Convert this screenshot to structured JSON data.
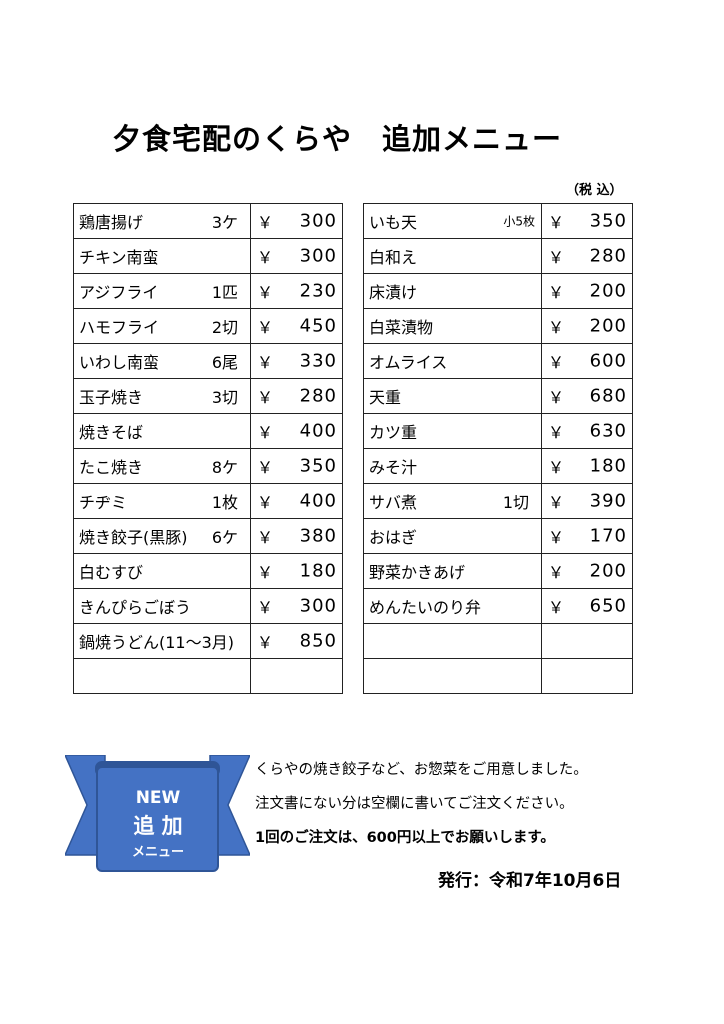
{
  "title": "夕食宅配のくらや　追加メニュー",
  "tax_note": "（税 込）",
  "currency_symbol": "￥",
  "left_menu": [
    {
      "name": "鶏唐揚げ",
      "qty": "3ケ",
      "price": "300"
    },
    {
      "name": "チキン南蛮",
      "qty": "",
      "price": "300"
    },
    {
      "name": "アジフライ",
      "qty": "1匹",
      "price": "230"
    },
    {
      "name": "ハモフライ",
      "qty": "2切",
      "price": "450"
    },
    {
      "name": "いわし南蛮",
      "qty": "6尾",
      "price": "330"
    },
    {
      "name": "玉子焼き",
      "qty": "3切",
      "price": "280"
    },
    {
      "name": "焼きそば",
      "qty": "",
      "price": "400"
    },
    {
      "name": "たこ焼き",
      "qty": "8ケ",
      "price": "350"
    },
    {
      "name": "チヂミ",
      "qty": "1枚",
      "price": "400"
    },
    {
      "name": "焼き餃子(黒豚)",
      "qty": "6ケ",
      "price": "380"
    },
    {
      "name": "白むすび",
      "qty": "",
      "price": "180"
    },
    {
      "name": "きんぴらごぼう",
      "qty": "",
      "price": "300"
    },
    {
      "name": "鍋焼うどん(11～3月)",
      "qty": "",
      "price": "850"
    },
    {
      "name": "",
      "qty": "",
      "price": ""
    }
  ],
  "right_menu": [
    {
      "name": "いも天",
      "qty": "小5枚",
      "price": "350"
    },
    {
      "name": "白和え",
      "qty": "",
      "price": "280"
    },
    {
      "name": "床漬け",
      "qty": "",
      "price": "200"
    },
    {
      "name": "白菜漬物",
      "qty": "",
      "price": "200"
    },
    {
      "name": "オムライス",
      "qty": "",
      "price": "600"
    },
    {
      "name": "天重",
      "qty": "",
      "price": "680"
    },
    {
      "name": "カツ重",
      "qty": "",
      "price": "630"
    },
    {
      "name": "みそ汁",
      "qty": "",
      "price": "180"
    },
    {
      "name": "サバ煮",
      "qty": "1切",
      "price": "390"
    },
    {
      "name": "おはぎ",
      "qty": "",
      "price": "170"
    },
    {
      "name": "野菜かきあげ",
      "qty": "",
      "price": "200"
    },
    {
      "name": "めんたいのり弁",
      "qty": "",
      "price": "650"
    },
    {
      "name": "",
      "qty": "",
      "price": ""
    },
    {
      "name": "",
      "qty": "",
      "price": ""
    }
  ],
  "ribbon": {
    "line1": "NEW",
    "line2": "追 加",
    "line3": "メニュー",
    "color": "#4472c4",
    "dark_color": "#2f5597"
  },
  "notes": [
    "くらやの焼き餃子など、お惣菜をご用意しました。",
    "注文書にない分は空欄に書いてご注文ください。",
    "1回のご注文は、600円以上でお願いします。"
  ],
  "issued": "発行：令和7年10月6日"
}
